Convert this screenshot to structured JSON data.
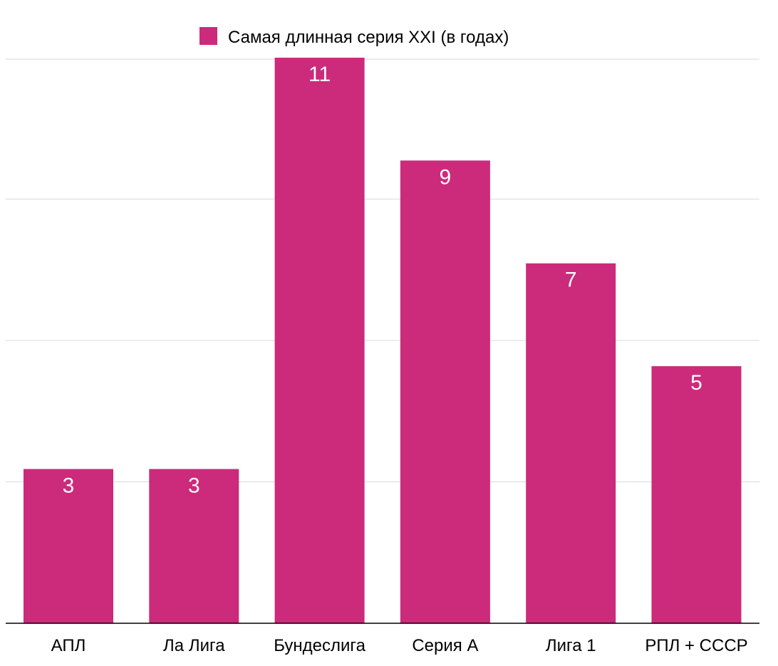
{
  "chart_data": {
    "type": "bar",
    "categories": [
      "АПЛ",
      "Ла Лига",
      "Бундеслига",
      "Серия А",
      "Лига 1",
      "РПЛ + СССР"
    ],
    "series": [
      {
        "name": "Самая длинная серия XXI (в годах)",
        "values": [
          3,
          3,
          11,
          9,
          7,
          5
        ],
        "color": "#cc2a7b"
      }
    ],
    "data_labels": [
      "3",
      "3",
      "11",
      "9",
      "7",
      "5"
    ],
    "title": "",
    "xlabel": "",
    "ylabel": "",
    "ylim": [
      0,
      11
    ],
    "grid": true,
    "legend_position": "top-center",
    "gridline_color": "#d9d9d9",
    "axis_color": "#000000"
  }
}
